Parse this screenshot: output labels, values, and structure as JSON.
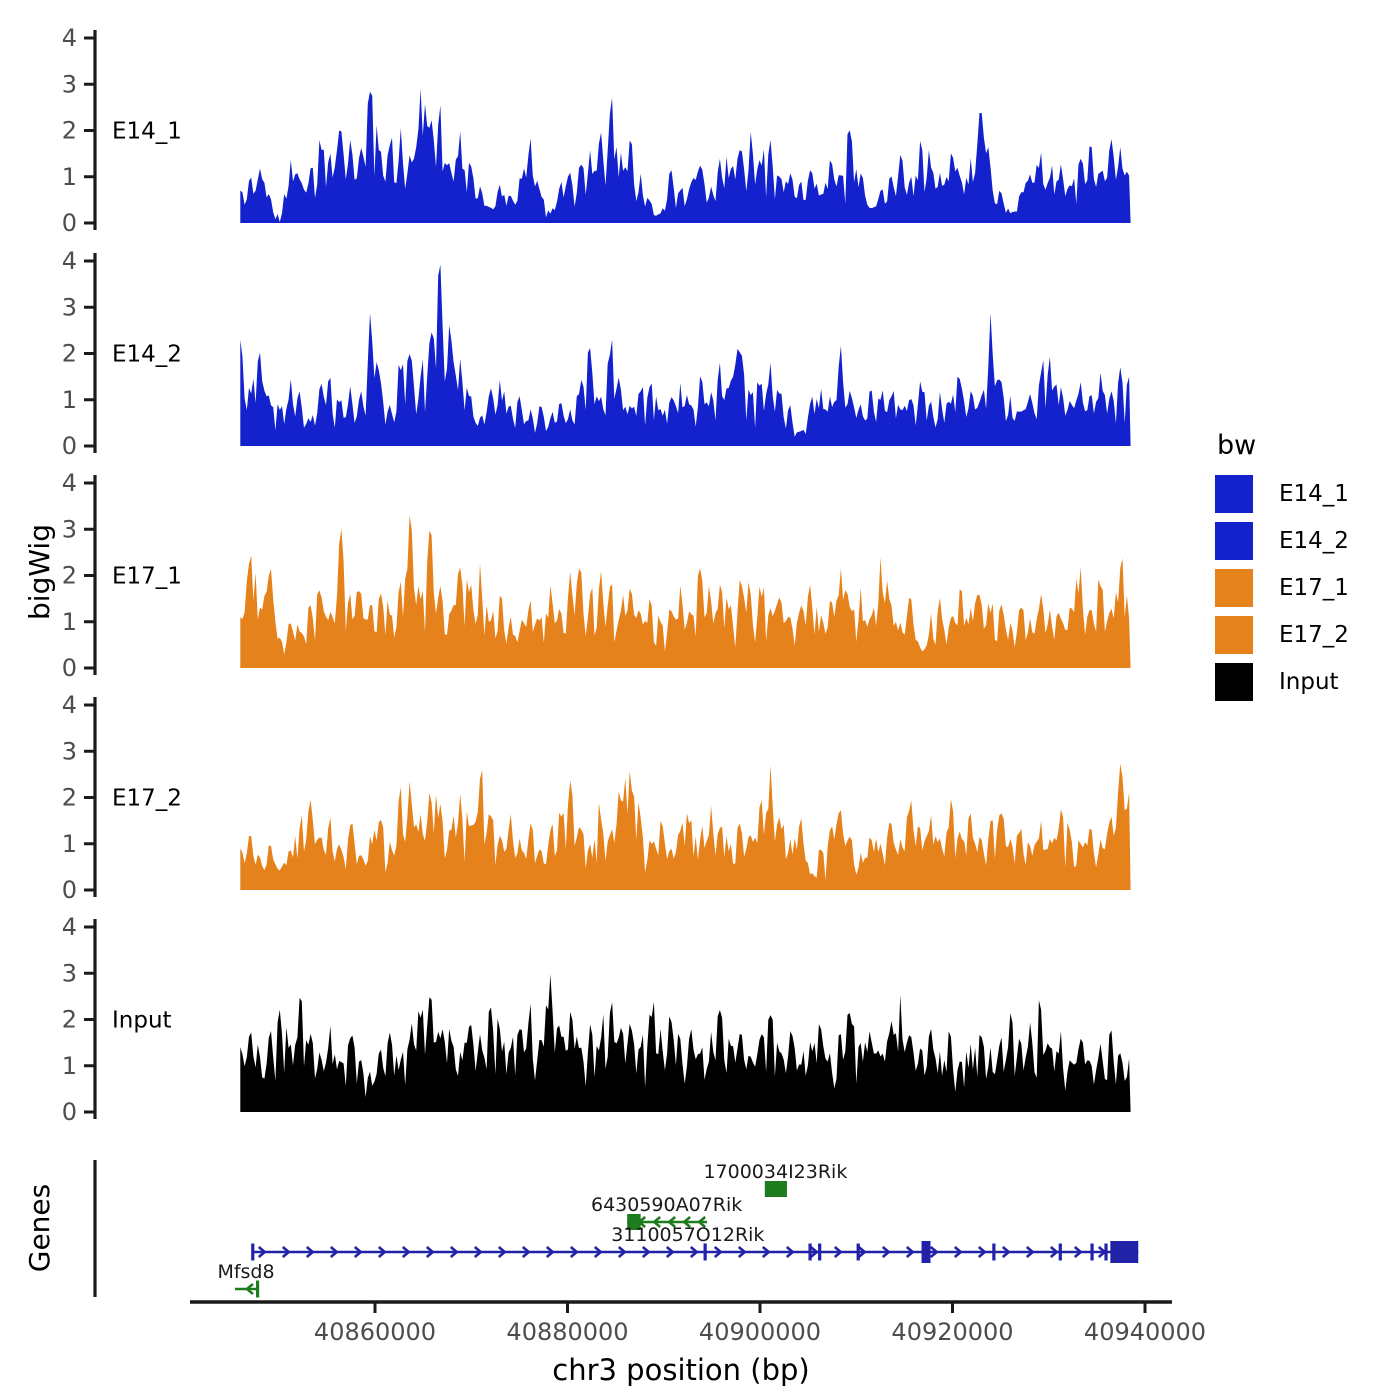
{
  "figure": {
    "ylabel": "bigWig",
    "genes_label": "Genes",
    "xlabel": "chr3 position (bp)"
  },
  "legend": {
    "title": "bw",
    "entries": [
      {
        "label": "E14_1",
        "color": "#1322CD"
      },
      {
        "label": "E14_2",
        "color": "#1322CD"
      },
      {
        "label": "E17_1",
        "color": "#E6821C"
      },
      {
        "label": "E17_2",
        "color": "#E6821C"
      },
      {
        "label": "Input",
        "color": "#000000"
      }
    ]
  },
  "chart_data": {
    "type": "area",
    "title": "",
    "xlabel": "chr3 position (bp)",
    "ylabel": "bigWig",
    "x_axis": {
      "ticks": [
        40860000,
        40880000,
        40900000,
        40920000,
        40940000
      ],
      "tick_labels": [
        "40860000",
        "40880000",
        "40900000",
        "40920000",
        "40940000"
      ],
      "range": [
        40840800,
        40942800
      ]
    },
    "y_axis": {
      "ticks": [
        0,
        1,
        2,
        3,
        4
      ],
      "range": [
        0,
        4.3
      ]
    },
    "series_bp_range": [
      40846000,
      40938500
    ],
    "series": [
      {
        "name": "E14_1",
        "color": "#1322CD",
        "values": [
          0.7,
          1.0,
          1.2,
          0.6,
          0.05,
          1.5,
          1.0,
          1.2,
          1.9,
          1.5,
          2.2,
          1.8,
          1.6,
          2.9,
          1.6,
          1.8,
          2.2,
          1.5,
          3.0,
          2.3,
          2.6,
          1.2,
          2.0,
          1.4,
          0.8,
          0.3,
          0.9,
          0.6,
          1.1,
          1.9,
          0.7,
          0.2,
          0.9,
          1.1,
          1.4,
          1.6,
          2.0,
          2.5,
          1.6,
          1.9,
          1.1,
          0.5,
          0.2,
          1.3,
          0.7,
          0.9,
          1.3,
          0.8,
          1.5,
          1.2,
          1.7,
          2.0,
          1.4,
          1.8,
          1.0,
          1.1,
          0.9,
          1.2,
          0.6,
          1.5,
          1.0,
          2.2,
          1.1,
          0.3,
          0.7,
          1.1,
          1.5,
          1.0,
          1.9,
          1.3,
          1.1,
          1.6,
          1.0,
          1.4,
          2.9,
          1.2,
          0.8,
          0.2,
          0.7,
          1.1,
          1.6,
          1.0,
          1.3,
          0.9,
          1.4,
          1.8,
          1.1,
          1.9,
          1.7,
          1.5
        ]
      },
      {
        "name": "E14_2",
        "color": "#1322CD",
        "values": [
          2.3,
          1.2,
          2.1,
          1.0,
          0.8,
          1.6,
          1.2,
          0.5,
          1.4,
          1.5,
          1.0,
          1.3,
          1.1,
          3.0,
          1.5,
          0.9,
          1.7,
          2.1,
          1.5,
          2.4,
          4.0,
          2.8,
          1.9,
          1.2,
          0.6,
          1.3,
          1.5,
          0.9,
          1.2,
          0.8,
          1.0,
          0.6,
          1.1,
          0.8,
          1.4,
          2.2,
          1.1,
          2.1,
          1.3,
          0.9,
          1.2,
          1.5,
          0.8,
          1.1,
          1.4,
          0.9,
          1.6,
          1.2,
          1.9,
          1.4,
          2.2,
          1.1,
          1.5,
          1.8,
          1.2,
          0.9,
          0.3,
          1.0,
          1.3,
          1.1,
          2.3,
          1.2,
          0.9,
          1.4,
          1.0,
          1.2,
          0.8,
          1.1,
          1.5,
          1.0,
          1.3,
          0.9,
          1.6,
          1.2,
          1.0,
          2.9,
          1.5,
          1.1,
          0.8,
          1.2,
          1.7,
          2.1,
          1.3,
          1.0,
          1.4,
          1.1,
          1.6,
          1.2,
          1.8,
          1.4
        ]
      },
      {
        "name": "E17_1",
        "color": "#E6821C",
        "values": [
          1.1,
          2.9,
          1.3,
          2.5,
          0.6,
          1.0,
          0.8,
          1.4,
          1.9,
          1.2,
          3.4,
          1.6,
          1.9,
          1.4,
          1.7,
          1.2,
          1.9,
          3.7,
          1.5,
          3.3,
          1.8,
          1.3,
          2.2,
          1.9,
          2.3,
          1.1,
          1.7,
          1.2,
          0.8,
          1.5,
          1.1,
          1.8,
          1.3,
          2.1,
          2.4,
          1.6,
          2.2,
          1.8,
          1.3,
          1.9,
          1.2,
          1.6,
          1.0,
          1.4,
          1.8,
          1.2,
          2.3,
          1.5,
          1.9,
          1.4,
          2.1,
          1.6,
          1.9,
          1.3,
          1.7,
          1.1,
          1.5,
          1.9,
          1.2,
          1.6,
          2.3,
          1.4,
          1.8,
          1.1,
          2.4,
          1.5,
          1.0,
          1.7,
          0.4,
          1.2,
          1.6,
          1.1,
          1.9,
          1.3,
          1.7,
          1.2,
          1.5,
          1.0,
          1.4,
          1.1,
          1.7,
          1.3,
          1.1,
          1.5,
          2.2,
          1.4,
          1.8,
          1.3,
          2.3,
          1.6
        ]
      },
      {
        "name": "E17_2",
        "color": "#E6821C",
        "values": [
          0.9,
          1.3,
          0.7,
          1.1,
          0.4,
          0.9,
          1.5,
          2.1,
          1.2,
          1.6,
          1.0,
          1.4,
          0.8,
          1.2,
          1.6,
          1.1,
          2.3,
          2.6,
          1.7,
          2.4,
          1.9,
          1.3,
          2.1,
          1.5,
          2.5,
          1.8,
          1.2,
          1.7,
          1.1,
          1.5,
          0.9,
          1.3,
          1.8,
          2.4,
          1.4,
          1.0,
          1.7,
          1.2,
          2.0,
          2.9,
          1.6,
          1.1,
          1.5,
          0.9,
          1.3,
          1.7,
          1.1,
          1.9,
          1.4,
          1.0,
          1.6,
          1.2,
          2.0,
          2.7,
          1.5,
          1.1,
          1.7,
          0.3,
          0.9,
          1.4,
          1.8,
          1.2,
          0.8,
          1.3,
          1.0,
          1.6,
          1.1,
          2.2,
          1.4,
          1.8,
          1.1,
          2.1,
          1.3,
          1.7,
          1.2,
          1.5,
          1.9,
          1.1,
          1.4,
          1.0,
          1.6,
          1.2,
          1.8,
          1.3,
          1.0,
          1.5,
          1.1,
          1.7,
          2.9,
          2.0
        ]
      },
      {
        "name": "Input",
        "color": "#000000",
        "values": [
          1.4,
          2.0,
          1.2,
          1.8,
          2.3,
          1.5,
          2.6,
          1.8,
          1.3,
          1.9,
          1.1,
          1.6,
          1.2,
          0.9,
          1.4,
          1.8,
          1.2,
          1.7,
          2.1,
          2.8,
          1.6,
          1.9,
          1.3,
          2.2,
          1.7,
          2.5,
          1.9,
          1.4,
          2.0,
          2.4,
          1.6,
          3.0,
          1.8,
          2.2,
          1.5,
          2.0,
          1.7,
          2.3,
          1.9,
          2.1,
          1.4,
          2.5,
          1.8,
          2.2,
          1.6,
          1.9,
          1.3,
          1.8,
          2.3,
          1.5,
          1.9,
          1.2,
          1.7,
          2.1,
          1.4,
          1.8,
          1.1,
          1.6,
          2.0,
          1.3,
          1.7,
          2.4,
          1.5,
          1.9,
          1.2,
          2.2,
          2.6,
          1.7,
          1.4,
          1.9,
          1.3,
          1.7,
          1.1,
          1.5,
          1.9,
          1.4,
          1.8,
          2.2,
          1.6,
          2.0,
          2.3,
          1.5,
          1.8,
          1.2,
          1.6,
          1.1,
          1.5,
          1.9,
          1.3,
          1.2
        ]
      }
    ],
    "genes": [
      {
        "name": "1700034I23Rik",
        "color": "#1E7B1E",
        "strand": ".",
        "row": 0,
        "line": null,
        "boxes": [
          [
            40900500,
            40902800
          ]
        ],
        "exon_marks": [],
        "label_bp": 40901600
      },
      {
        "name": "6430590A07Rik",
        "color": "#1E7B1E",
        "strand": "-",
        "row": 1,
        "line": [
          40886200,
          40894500
        ],
        "boxes": [
          [
            40886200,
            40887600
          ]
        ],
        "exon_marks": [],
        "label_bp": 40890300
      },
      {
        "name": "3110057O12Rik",
        "color": "#2222A8",
        "strand": "+",
        "row": 2,
        "line": [
          40847300,
          40939300
        ],
        "boxes": [
          [
            40936400,
            40939300
          ]
        ],
        "exon_marks": [
          40847300,
          40894300,
          40905200,
          40906200,
          40910200,
          40917250,
          40924300,
          40931200,
          40934500,
          40935950
        ],
        "label_bp": 40892500
      },
      {
        "name": "Mfsd8",
        "color": "#1E7B1E",
        "strand": "-",
        "row": 3,
        "line": [
          40845450,
          40847800
        ],
        "boxes": [],
        "exon_marks": [
          40847800
        ],
        "label_bp": 40846600
      }
    ]
  }
}
